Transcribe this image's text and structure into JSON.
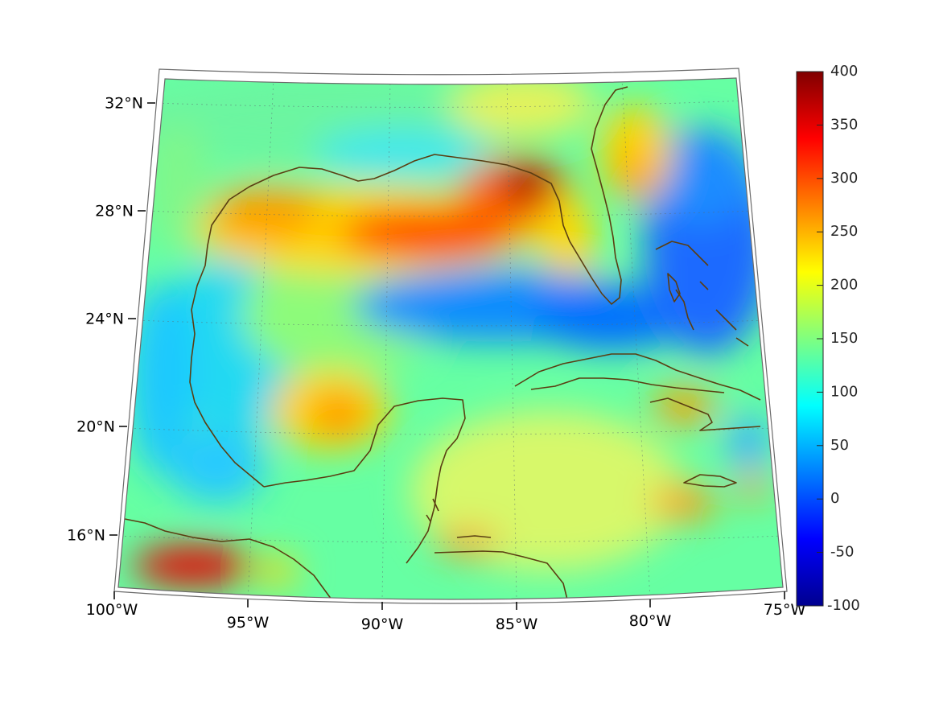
{
  "map": {
    "projection": "conic",
    "region": "Gulf of Mexico and Caribbean",
    "lat_labels": [
      "32°N",
      "28°N",
      "24°N",
      "20°N",
      "16°N"
    ],
    "lon_labels": [
      "100°W",
      "95°W",
      "90°W",
      "85°W",
      "80°W",
      "75°W"
    ],
    "lat_range": [
      14,
      33
    ],
    "lon_range": [
      -100,
      -75
    ],
    "coastline_color": "#5a3e12",
    "grid": true
  },
  "colorbar": {
    "labels": [
      "400",
      "350",
      "300",
      "250",
      "200",
      "150",
      "100",
      "50",
      "0",
      "-50",
      "-100"
    ],
    "range": [
      -100,
      400
    ],
    "colormap": "jet"
  },
  "chart_data": {
    "type": "heatmap",
    "colormap": "jet",
    "value_range": [
      -100,
      400
    ],
    "features": [
      {
        "name": "northern gulf shelf maximum",
        "approx_lon": -88,
        "approx_lat": 27.5,
        "value": 320
      },
      {
        "name": "florida panhandle maximum",
        "approx_lon": -84.5,
        "approx_lat": 29.3,
        "value": 380
      },
      {
        "name": "bay of campeche maximum",
        "approx_lon": -91.5,
        "approx_lat": 20.7,
        "value": 280
      },
      {
        "name": "southwest corner maximum",
        "approx_lon": -97.5,
        "approx_lat": 15.0,
        "value": 370
      },
      {
        "name": "loop current / florida straits minimum",
        "approx_lon": -84,
        "approx_lat": 25.5,
        "value": 40
      },
      {
        "name": "atlantic east of florida minimum",
        "approx_lon": -77.5,
        "approx_lat": 27,
        "value": 40
      },
      {
        "name": "atlantic plume high",
        "approx_lon": -79,
        "approx_lat": 29.5,
        "value": 270
      }
    ]
  }
}
